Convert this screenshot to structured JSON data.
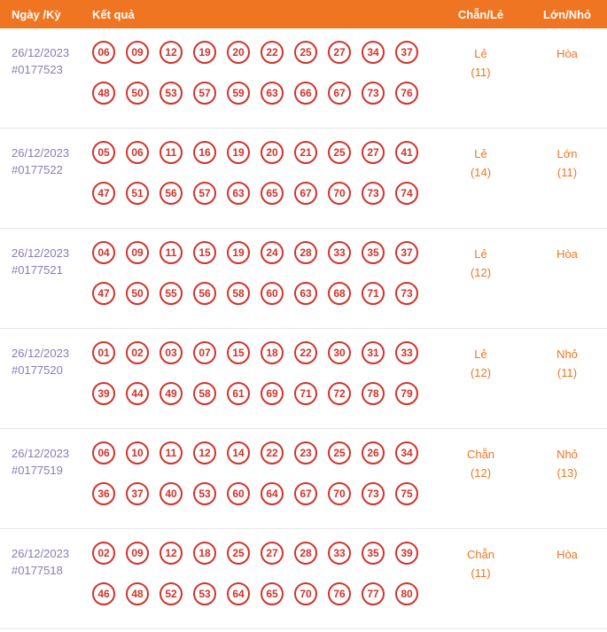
{
  "header": {
    "col_date": "Ngày /Kỳ",
    "col_result": "Kết quả",
    "col_even_odd": "Chẵn/Lẻ",
    "col_big_small": "Lớn/Nhỏ"
  },
  "colors": {
    "header_bg": "#F07522",
    "accent_orange": "#F07522",
    "date_purple": "#8A7AB5",
    "ball_red": "#D0342C",
    "separator": "#E7E7E7"
  },
  "rows": [
    {
      "date": "26/12/2023",
      "draw_id": "#0177523",
      "numbers_line1": [
        "06",
        "09",
        "12",
        "19",
        "20",
        "22",
        "25",
        "27",
        "34",
        "37"
      ],
      "numbers_line2": [
        "48",
        "50",
        "53",
        "57",
        "59",
        "63",
        "66",
        "67",
        "73",
        "76"
      ],
      "even_odd": "Lẻ",
      "even_odd_count": "(11)",
      "big_small": "Hòa",
      "big_small_count": ""
    },
    {
      "date": "26/12/2023",
      "draw_id": "#0177522",
      "numbers_line1": [
        "05",
        "06",
        "11",
        "16",
        "19",
        "20",
        "21",
        "25",
        "27",
        "41"
      ],
      "numbers_line2": [
        "47",
        "51",
        "56",
        "57",
        "63",
        "65",
        "67",
        "70",
        "73",
        "74"
      ],
      "even_odd": "Lẻ",
      "even_odd_count": "(14)",
      "big_small": "Lớn",
      "big_small_count": "(11)"
    },
    {
      "date": "26/12/2023",
      "draw_id": "#0177521",
      "numbers_line1": [
        "04",
        "09",
        "11",
        "15",
        "19",
        "24",
        "28",
        "33",
        "35",
        "37"
      ],
      "numbers_line2": [
        "47",
        "50",
        "55",
        "56",
        "58",
        "60",
        "63",
        "68",
        "71",
        "73"
      ],
      "even_odd": "Lẻ",
      "even_odd_count": "(12)",
      "big_small": "Hòa",
      "big_small_count": ""
    },
    {
      "date": "26/12/2023",
      "draw_id": "#0177520",
      "numbers_line1": [
        "01",
        "02",
        "03",
        "07",
        "15",
        "18",
        "22",
        "30",
        "31",
        "33"
      ],
      "numbers_line2": [
        "39",
        "44",
        "49",
        "58",
        "61",
        "69",
        "71",
        "72",
        "78",
        "79"
      ],
      "even_odd": "Lẻ",
      "even_odd_count": "(12)",
      "big_small": "Nhỏ",
      "big_small_count": "(11)"
    },
    {
      "date": "26/12/2023",
      "draw_id": "#0177519",
      "numbers_line1": [
        "06",
        "10",
        "11",
        "12",
        "14",
        "22",
        "23",
        "25",
        "26",
        "34"
      ],
      "numbers_line2": [
        "36",
        "37",
        "40",
        "53",
        "60",
        "64",
        "67",
        "70",
        "73",
        "75"
      ],
      "even_odd": "Chẵn",
      "even_odd_count": "(12)",
      "big_small": "Nhỏ",
      "big_small_count": "(13)"
    },
    {
      "date": "26/12/2023",
      "draw_id": "#0177518",
      "numbers_line1": [
        "02",
        "09",
        "12",
        "18",
        "25",
        "27",
        "28",
        "33",
        "35",
        "39"
      ],
      "numbers_line2": [
        "46",
        "48",
        "52",
        "53",
        "64",
        "65",
        "70",
        "76",
        "77",
        "80"
      ],
      "even_odd": "Chẵn",
      "even_odd_count": "(11)",
      "big_small": "Hòa",
      "big_small_count": ""
    }
  ]
}
